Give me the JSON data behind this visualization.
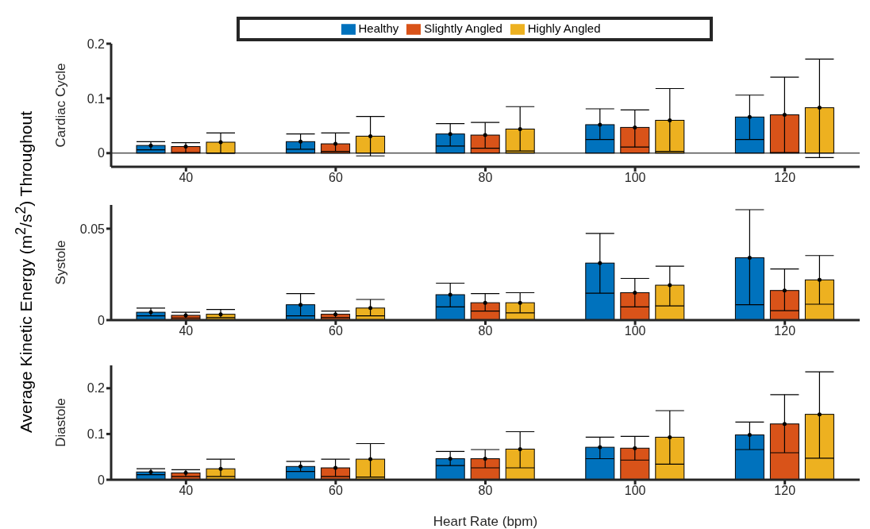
{
  "chart_data": [
    {
      "type": "bar",
      "ylabel": "Cardiac Cycle",
      "categories": [
        "40",
        "60",
        "80",
        "100",
        "120"
      ],
      "ylim": [
        -0.025,
        0.2
      ],
      "yticks": [
        0,
        0.1,
        0.2
      ],
      "legend": "top",
      "ref_lines": [
        {
          "axis": "y",
          "value": 0
        }
      ],
      "annotations": [
        "Average Kinetic Energy (m$^{2}$/s$^{2}$) Throughout"
      ],
      "series": [
        {
          "name": "Healthy",
          "color": "#0072bd",
          "marker": "circle",
          "values": [
            0.014,
            0.021,
            0.035,
            0.052,
            0.066
          ],
          "errors": [
            [
              0.006,
              0.021
            ],
            [
              0.007,
              0.035
            ],
            [
              0.013,
              0.054
            ],
            [
              0.025,
              0.081
            ],
            [
              0.025,
              0.106
            ]
          ]
        },
        {
          "name": "Slightly Angled",
          "color": "#d95319",
          "marker": "circle",
          "values": [
            0.012,
            0.017,
            0.033,
            0.047,
            0.07
          ],
          "errors": [
            [
              0.001,
              0.019
            ],
            [
              0.003,
              0.037
            ],
            [
              0.009,
              0.056
            ],
            [
              0.011,
              0.079
            ],
            [
              0.001,
              0.139
            ]
          ]
        },
        {
          "name": "Highly Angled",
          "color": "#edb120",
          "marker": "circle",
          "values": [
            0.02,
            0.031,
            0.044,
            0.06,
            0.083
          ],
          "errors": [
            [
              0.0,
              0.037
            ],
            [
              -0.005,
              0.067
            ],
            [
              0.004,
              0.085
            ],
            [
              0.003,
              0.118
            ],
            [
              -0.008,
              0.172
            ]
          ]
        }
      ]
    },
    {
      "type": "bar",
      "ylabel": "Systole",
      "categories": [
        "40",
        "60",
        "80",
        "100",
        "120"
      ],
      "ylim": [
        0,
        0.063
      ],
      "yticks": [
        0,
        0.05
      ],
      "series": [
        {
          "color": "#0072bd",
          "marker": "circle",
          "values": [
            0.0043,
            0.0084,
            0.0139,
            0.0312,
            0.0341
          ],
          "errors": [
            [
              0.0023,
              0.0066
            ],
            [
              0.0023,
              0.0145
            ],
            [
              0.0072,
              0.0202
            ],
            [
              0.0147,
              0.0474
            ],
            [
              0.0084,
              0.0604
            ]
          ]
        },
        {
          "color": "#d95319",
          "marker": "circle",
          "values": [
            0.0026,
            0.0032,
            0.0095,
            0.015,
            0.0162
          ],
          "errors": [
            [
              0.0012,
              0.0043
            ],
            [
              0.0014,
              0.0049
            ],
            [
              0.0049,
              0.0145
            ],
            [
              0.0072,
              0.0228
            ],
            [
              0.0052,
              0.028
            ]
          ]
        },
        {
          "color": "#edb120",
          "marker": "circle",
          "values": [
            0.0032,
            0.0066,
            0.0095,
            0.0191,
            0.022
          ],
          "errors": [
            [
              0.0014,
              0.0058
            ],
            [
              0.0023,
              0.0113
            ],
            [
              0.004,
              0.015
            ],
            [
              0.0078,
              0.0295
            ],
            [
              0.0087,
              0.0353
            ]
          ]
        }
      ]
    },
    {
      "type": "bar",
      "ylabel": "Diastole",
      "xlabel": "Heart Rate (bpm)",
      "categories": [
        "40",
        "60",
        "80",
        "100",
        "120"
      ],
      "ylim": [
        0,
        0.25
      ],
      "yticks": [
        0,
        0.1,
        0.2
      ],
      "series": [
        {
          "color": "#0072bd",
          "marker": "circle",
          "values": [
            0.017,
            0.029,
            0.046,
            0.071,
            0.098
          ],
          "errors": [
            [
              0.011,
              0.024
            ],
            [
              0.018,
              0.04
            ],
            [
              0.031,
              0.062
            ],
            [
              0.046,
              0.093
            ],
            [
              0.066,
              0.126
            ]
          ]
        },
        {
          "color": "#d95319",
          "marker": "circle",
          "values": [
            0.015,
            0.026,
            0.046,
            0.069,
            0.122
          ],
          "errors": [
            [
              0.007,
              0.022
            ],
            [
              0.007,
              0.045
            ],
            [
              0.026,
              0.066
            ],
            [
              0.043,
              0.095
            ],
            [
              0.059,
              0.186
            ]
          ]
        },
        {
          "color": "#edb120",
          "marker": "circle",
          "values": [
            0.024,
            0.045,
            0.067,
            0.093,
            0.143
          ],
          "errors": [
            [
              0.007,
              0.045
            ],
            [
              0.006,
              0.079
            ],
            [
              0.026,
              0.105
            ],
            [
              0.034,
              0.151
            ],
            [
              0.047,
              0.236
            ]
          ]
        }
      ]
    }
  ]
}
